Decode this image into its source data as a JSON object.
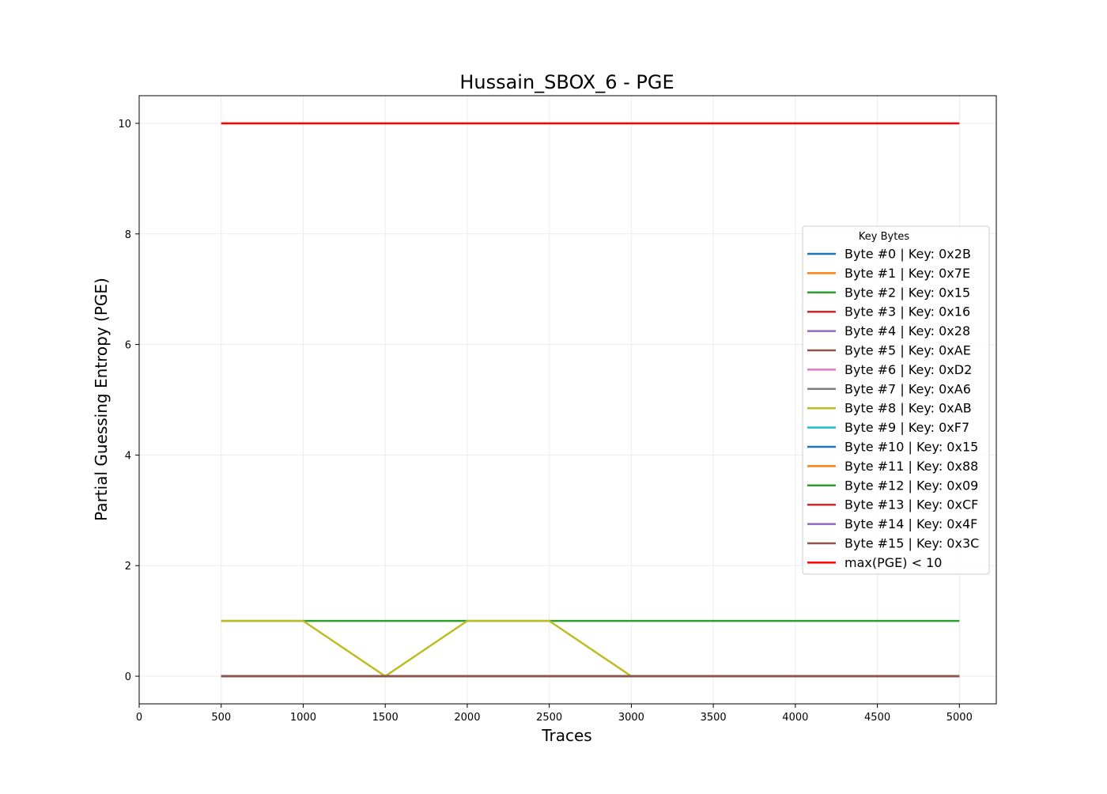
{
  "chart_data": {
    "type": "line",
    "title": "Hussain_SBOX_6 - PGE",
    "xlabel": "Traces",
    "ylabel": "Partial Guessing Entropy (PGE)",
    "xlim": [
      0,
      5225
    ],
    "ylim": [
      -0.5,
      10.5
    ],
    "xticks": [
      0,
      500,
      1000,
      1500,
      2000,
      2500,
      3000,
      3500,
      4000,
      4500,
      5000
    ],
    "yticks": [
      0,
      2,
      4,
      6,
      8,
      10
    ],
    "grid": true,
    "legend": {
      "title": "Key Bytes",
      "placement": "center-right"
    },
    "x": [
      500,
      1000,
      1500,
      2000,
      2500,
      3000,
      3500,
      4000,
      4500,
      5000
    ],
    "series": [
      {
        "name": "Byte #0 | Key: 0x2B",
        "color": "#1f77b4",
        "values": [
          0,
          0,
          0,
          0,
          0,
          0,
          0,
          0,
          0,
          0
        ]
      },
      {
        "name": "Byte #1 | Key: 0x7E",
        "color": "#ff7f0e",
        "values": [
          0,
          0,
          0,
          0,
          0,
          0,
          0,
          0,
          0,
          0
        ]
      },
      {
        "name": "Byte #2 | Key: 0x15",
        "color": "#2ca02c",
        "values": [
          1,
          1,
          1,
          1,
          1,
          1,
          1,
          1,
          1,
          1
        ]
      },
      {
        "name": "Byte #3 | Key: 0x16",
        "color": "#d62728",
        "values": [
          0,
          0,
          0,
          0,
          0,
          0,
          0,
          0,
          0,
          0
        ]
      },
      {
        "name": "Byte #4 | Key: 0x28",
        "color": "#9467bd",
        "values": [
          0,
          0,
          0,
          0,
          0,
          0,
          0,
          0,
          0,
          0
        ]
      },
      {
        "name": "Byte #5 | Key: 0xAE",
        "color": "#8c564b",
        "values": [
          0,
          0,
          0,
          0,
          0,
          0,
          0,
          0,
          0,
          0
        ]
      },
      {
        "name": "Byte #6 | Key: 0xD2",
        "color": "#e377c2",
        "values": [
          0,
          0,
          0,
          0,
          0,
          0,
          0,
          0,
          0,
          0
        ]
      },
      {
        "name": "Byte #7 | Key: 0xA6",
        "color": "#7f7f7f",
        "values": [
          0,
          0,
          0,
          0,
          0,
          0,
          0,
          0,
          0,
          0
        ]
      },
      {
        "name": "Byte #8 | Key: 0xAB",
        "color": "#bcbd22",
        "values": [
          1,
          1,
          0,
          1,
          1,
          0,
          0,
          0,
          0,
          0
        ]
      },
      {
        "name": "Byte #9 | Key: 0xF7",
        "color": "#17becf",
        "values": [
          0,
          0,
          0,
          0,
          0,
          0,
          0,
          0,
          0,
          0
        ]
      },
      {
        "name": "Byte #10 | Key: 0x15",
        "color": "#1f77b4",
        "values": [
          0,
          0,
          0,
          0,
          0,
          0,
          0,
          0,
          0,
          0
        ]
      },
      {
        "name": "Byte #11 | Key: 0x88",
        "color": "#ff7f0e",
        "values": [
          0,
          0,
          0,
          0,
          0,
          0,
          0,
          0,
          0,
          0
        ]
      },
      {
        "name": "Byte #12 | Key: 0x09",
        "color": "#2ca02c",
        "values": [
          0,
          0,
          0,
          0,
          0,
          0,
          0,
          0,
          0,
          0
        ]
      },
      {
        "name": "Byte #13 | Key: 0xCF",
        "color": "#d62728",
        "values": [
          0,
          0,
          0,
          0,
          0,
          0,
          0,
          0,
          0,
          0
        ]
      },
      {
        "name": "Byte #14 | Key: 0x4F",
        "color": "#9467bd",
        "values": [
          0,
          0,
          0,
          0,
          0,
          0,
          0,
          0,
          0,
          0
        ]
      },
      {
        "name": "Byte #15 | Key: 0x3C",
        "color": "#8c564b",
        "values": [
          0,
          0,
          0,
          0,
          0,
          0,
          0,
          0,
          0,
          0
        ]
      }
    ],
    "threshold": {
      "name": "max(PGE) < 10",
      "value": 10,
      "color": "#ff0000",
      "x": [
        500,
        5000
      ]
    }
  }
}
